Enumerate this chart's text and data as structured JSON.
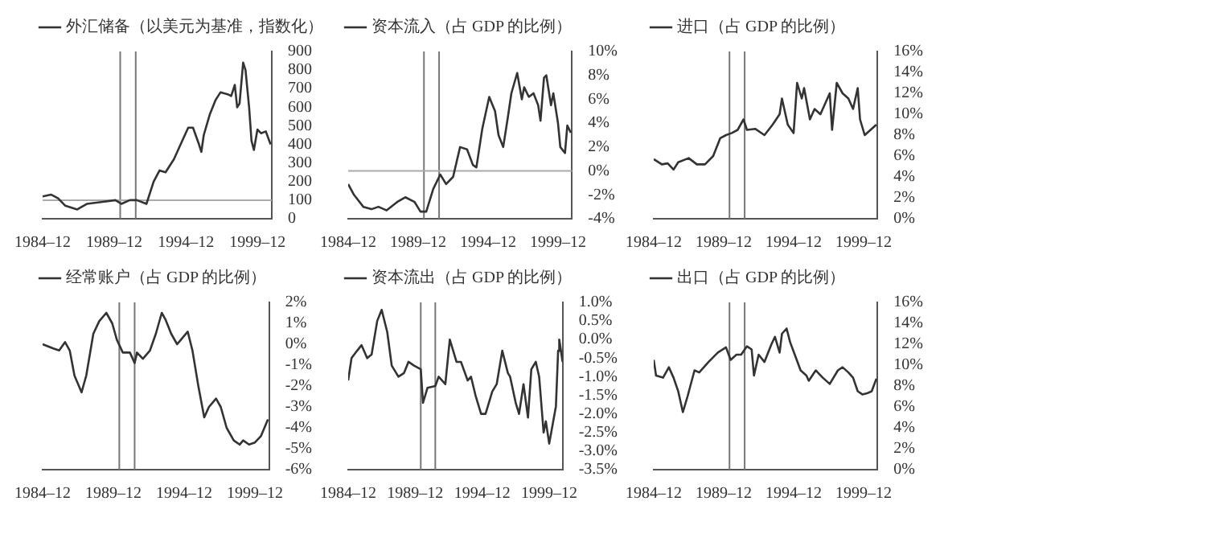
{
  "chart_data": [
    {
      "type": "line",
      "x": [
        "1984-12",
        "1985-07",
        "1986-01",
        "1986-07",
        "1987-05",
        "1988-01",
        "1989-01",
        "1990-01",
        "1990-06",
        "1991-01",
        "1991-07",
        "1992-03",
        "1992-09",
        "1993-02",
        "1993-07",
        "1994-02",
        "1994-09",
        "1995-02",
        "1995-06",
        "1995-11",
        "1996-01",
        "1996-03",
        "1996-08",
        "1997-01",
        "1997-05",
        "1997-11",
        "1998-02",
        "1998-05",
        "1998-07",
        "1998-09",
        "1998-12",
        "1999-02",
        "1999-05",
        "1999-07",
        "1999-09",
        "1999-12",
        "2000-03",
        "2000-07",
        "2000-11"
      ],
      "series": [
        {
          "name": "外汇储备（以美元为基准，指数化）",
          "color": "#333333",
          "values": [
            120,
            130,
            110,
            70,
            50,
            80,
            90,
            100,
            80,
            100,
            100,
            80,
            200,
            260,
            250,
            320,
            420,
            490,
            490,
            400,
            360,
            450,
            560,
            640,
            680,
            670,
            660,
            720,
            600,
            620,
            840,
            800,
            600,
            420,
            370,
            480,
            460,
            470,
            400
          ]
        }
      ],
      "xlim": [
        "1984-12",
        "2000-12"
      ],
      "xticks": [
        {
          "value": "1984-12",
          "label": "1984–12"
        },
        {
          "value": "1989-12",
          "label": "1989–12"
        },
        {
          "value": "1994-12",
          "label": "1994–12"
        },
        {
          "value": "1999-12",
          "label": "1999–12"
        }
      ],
      "ylim": [
        0,
        900
      ],
      "yticks": [
        0,
        100,
        200,
        300,
        400,
        500,
        600,
        700,
        800,
        900
      ],
      "legend": "top",
      "grid": false,
      "marker": "none",
      "ref_lines": [
        {
          "axis": "x",
          "value": "1990-05",
          "color": "#777777"
        },
        {
          "axis": "x",
          "value": "1991-06",
          "color": "#777777"
        },
        {
          "axis": "y",
          "value": 100,
          "color": "#aaaaaa"
        }
      ]
    },
    {
      "type": "line",
      "x": [
        "1984-12",
        "1985-05",
        "1986-01",
        "1986-08",
        "1987-02",
        "1987-09",
        "1988-06",
        "1989-01",
        "1989-09",
        "1990-02",
        "1990-07",
        "1991-01",
        "1991-07",
        "1991-12",
        "1992-06",
        "1992-12",
        "1993-06",
        "1993-11",
        "1994-02",
        "1994-07",
        "1995-01",
        "1995-06",
        "1995-09",
        "1996-01",
        "1996-05",
        "1996-08",
        "1997-01",
        "1997-05",
        "1997-07",
        "1997-11",
        "1998-03",
        "1998-07",
        "1998-09",
        "1998-12",
        "1999-02",
        "1999-06",
        "1999-08",
        "1999-12",
        "2000-02",
        "2000-06",
        "2000-08",
        "2000-11"
      ],
      "series": [
        {
          "name": "资本流入（占 GDP 的比例）",
          "color": "#333333",
          "values": [
            -1.1,
            -2,
            -3,
            -3.2,
            -3,
            -3.3,
            -2.6,
            -2.2,
            -2.6,
            -3.4,
            -3.4,
            -1.5,
            -0.3,
            -1.1,
            -0.5,
            2,
            1.8,
            0.5,
            0.3,
            3.5,
            6.2,
            5,
            3,
            2,
            4.5,
            6.5,
            8.2,
            6,
            7,
            6.2,
            6.5,
            5.5,
            4.2,
            7.8,
            8,
            5.5,
            6.5,
            4,
            2,
            1.5,
            3.8,
            3.2
          ]
        }
      ],
      "xlim": [
        "1984-12",
        "2000-12"
      ],
      "xticks": [
        {
          "value": "1984-12",
          "label": "1984–12"
        },
        {
          "value": "1989-12",
          "label": "1989–12"
        },
        {
          "value": "1994-12",
          "label": "1994–12"
        },
        {
          "value": "1999-12",
          "label": "1999–12"
        }
      ],
      "ylim": [
        -4,
        10
      ],
      "yticks": [
        {
          "value": -4,
          "label": "-4%"
        },
        {
          "value": -2,
          "label": "-2%"
        },
        {
          "value": 0,
          "label": "0%"
        },
        {
          "value": 2,
          "label": "2%"
        },
        {
          "value": 4,
          "label": "4%"
        },
        {
          "value": 6,
          "label": "6%"
        },
        {
          "value": 8,
          "label": "8%"
        },
        {
          "value": 10,
          "label": "10%"
        }
      ],
      "legend": "top",
      "grid": false,
      "marker": "none",
      "ref_lines": [
        {
          "axis": "x",
          "value": "1990-05",
          "color": "#777777"
        },
        {
          "axis": "x",
          "value": "1991-06",
          "color": "#777777"
        },
        {
          "axis": "y",
          "value": 0,
          "color": "#aaaaaa"
        }
      ]
    },
    {
      "type": "line",
      "x": [
        "1984-12",
        "1985-07",
        "1985-12",
        "1986-05",
        "1986-09",
        "1987-06",
        "1988-01",
        "1988-08",
        "1989-03",
        "1989-09",
        "1990-02",
        "1990-07",
        "1990-12",
        "1991-05",
        "1991-08",
        "1992-03",
        "1992-11",
        "1993-06",
        "1993-12",
        "1994-02",
        "1994-07",
        "1994-12",
        "1995-03",
        "1995-07",
        "1995-09",
        "1996-02",
        "1996-06",
        "1996-11",
        "1997-03",
        "1997-07",
        "1997-09",
        "1998-01",
        "1998-06",
        "1998-11",
        "1999-03",
        "1999-07",
        "1999-09",
        "2000-01",
        "2000-06",
        "2000-11"
      ],
      "series": [
        {
          "name": "进口（占 GDP 的比例）",
          "color": "#333333",
          "values": [
            5.7,
            5.2,
            5.3,
            4.7,
            5.4,
            5.8,
            5.2,
            5.2,
            6,
            7.7,
            8,
            8.2,
            8.5,
            9.5,
            8.5,
            8.6,
            8,
            9,
            10,
            11.5,
            9,
            8.2,
            13,
            11.5,
            12.5,
            9.5,
            10.5,
            10,
            11,
            12,
            8.5,
            13,
            12,
            11.5,
            10.5,
            12.5,
            9.5,
            8,
            8.5,
            9
          ]
        }
      ],
      "xlim": [
        "1984-12",
        "2000-12"
      ],
      "xticks": [
        {
          "value": "1984-12",
          "label": "1984–12"
        },
        {
          "value": "1989-12",
          "label": "1989–12"
        },
        {
          "value": "1994-12",
          "label": "1994–12"
        },
        {
          "value": "1999-12",
          "label": "1999–12"
        }
      ],
      "ylim": [
        0,
        16
      ],
      "yticks": [
        {
          "value": 0,
          "label": "0%"
        },
        {
          "value": 2,
          "label": "2%"
        },
        {
          "value": 4,
          "label": "4%"
        },
        {
          "value": 6,
          "label": "6%"
        },
        {
          "value": 8,
          "label": "8%"
        },
        {
          "value": 10,
          "label": "10%"
        },
        {
          "value": 12,
          "label": "12%"
        },
        {
          "value": 14,
          "label": "14%"
        },
        {
          "value": 16,
          "label": "16%"
        }
      ],
      "legend": "top",
      "grid": false,
      "marker": "none",
      "ref_lines": [
        {
          "axis": "x",
          "value": "1990-05",
          "color": "#777777"
        },
        {
          "axis": "x",
          "value": "1991-06",
          "color": "#777777"
        }
      ]
    },
    {
      "type": "line",
      "x": [
        "1984-12",
        "1985-09",
        "1986-02",
        "1986-07",
        "1986-11",
        "1987-03",
        "1987-09",
        "1988-01",
        "1988-07",
        "1988-12",
        "1989-06",
        "1989-11",
        "1990-03",
        "1990-08",
        "1991-02",
        "1991-06",
        "1991-08",
        "1992-01",
        "1992-07",
        "1992-12",
        "1993-05",
        "1993-08",
        "1994-01",
        "1994-06",
        "1994-09",
        "1995-03",
        "1995-07",
        "1995-12",
        "1996-05",
        "1996-09",
        "1997-03",
        "1997-07",
        "1997-12",
        "1998-06",
        "1998-11",
        "1999-02",
        "1999-07",
        "1999-12",
        "2000-05",
        "2000-11"
      ],
      "series": [
        {
          "name": "经常账户（占 GDP 的比例）",
          "color": "#333333",
          "values": [
            0,
            -0.2,
            -0.3,
            0.1,
            -0.3,
            -1.5,
            -2.3,
            -1.5,
            0.5,
            1.1,
            1.5,
            1,
            0.2,
            -0.4,
            -0.4,
            -0.9,
            -0.4,
            -0.7,
            -0.3,
            0.5,
            1.5,
            1.2,
            0.5,
            0,
            0.2,
            0.6,
            -0.3,
            -2,
            -3.5,
            -3,
            -2.6,
            -3,
            -4,
            -4.6,
            -4.8,
            -4.6,
            -4.8,
            -4.7,
            -4.4,
            -3.6
          ]
        }
      ],
      "xlim": [
        "1984-12",
        "2000-12"
      ],
      "xticks": [
        {
          "value": "1984-12",
          "label": "1984–12"
        },
        {
          "value": "1989-12",
          "label": "1989–12"
        },
        {
          "value": "1994-12",
          "label": "1994–12"
        },
        {
          "value": "1999-12",
          "label": "1999–12"
        }
      ],
      "ylim": [
        -6,
        2
      ],
      "yticks": [
        {
          "value": -6,
          "label": "-6%"
        },
        {
          "value": -5,
          "label": "-5%"
        },
        {
          "value": -4,
          "label": "-4%"
        },
        {
          "value": -3,
          "label": "-3%"
        },
        {
          "value": -2,
          "label": "-2%"
        },
        {
          "value": -1,
          "label": "-1%"
        },
        {
          "value": 0,
          "label": "0%"
        },
        {
          "value": 1,
          "label": "1%"
        },
        {
          "value": 2,
          "label": "2%"
        }
      ],
      "legend": "top",
      "grid": false,
      "marker": "none",
      "ref_lines": [
        {
          "axis": "x",
          "value": "1990-05",
          "color": "#777777"
        },
        {
          "axis": "x",
          "value": "1991-06",
          "color": "#777777"
        }
      ]
    },
    {
      "type": "line",
      "x": [
        "1984-12",
        "1985-03",
        "1985-08",
        "1985-12",
        "1986-05",
        "1986-09",
        "1987-02",
        "1987-06",
        "1987-11",
        "1988-03",
        "1988-09",
        "1989-02",
        "1989-06",
        "1989-11",
        "1990-05",
        "1990-07",
        "1990-11",
        "1991-06",
        "1991-09",
        "1992-03",
        "1992-07",
        "1993-01",
        "1993-05",
        "1993-11",
        "1994-02",
        "1994-06",
        "1994-11",
        "1995-03",
        "1995-09",
        "1996-01",
        "1996-06",
        "1996-11",
        "1997-01",
        "1997-06",
        "1997-09",
        "1998-01",
        "1998-05",
        "1998-08",
        "1998-12",
        "1999-03",
        "1999-07",
        "1999-09",
        "1999-12",
        "2000-03",
        "2000-06",
        "2000-08",
        "2000-09",
        "2000-12"
      ],
      "series": [
        {
          "name": "资本流出（占 GDP 的比例）",
          "color": "#333333",
          "values": [
            -1.1,
            -0.5,
            -0.3,
            -0.15,
            -0.5,
            -0.4,
            0.5,
            0.8,
            0.2,
            -0.7,
            -1,
            -0.9,
            -0.6,
            -0.7,
            -0.8,
            -1.7,
            -1.3,
            -1.25,
            -1,
            -1.2,
            0,
            -0.6,
            -0.6,
            -1.1,
            -1,
            -1.5,
            -2,
            -2,
            -1.4,
            -1.2,
            -0.3,
            -0.9,
            -1,
            -1.7,
            -2,
            -1.2,
            -2.1,
            -0.8,
            -0.6,
            -1,
            -2.5,
            -2.2,
            -2.8,
            -2.3,
            -1.8,
            -0.3,
            0,
            -0.6
          ]
        }
      ],
      "xlim": [
        "1984-12",
        "2000-12"
      ],
      "xticks": [
        {
          "value": "1984-12",
          "label": "1984–12"
        },
        {
          "value": "1989-12",
          "label": "1989–12"
        },
        {
          "value": "1994-12",
          "label": "1994–12"
        },
        {
          "value": "1999-12",
          "label": "1999–12"
        }
      ],
      "ylim": [
        -3.5,
        1
      ],
      "yticks": [
        {
          "value": -3.5,
          "label": "-3.5%"
        },
        {
          "value": -3,
          "label": "-3.0%"
        },
        {
          "value": -2.5,
          "label": "-2.5%"
        },
        {
          "value": -2,
          "label": "-2.0%"
        },
        {
          "value": -1.5,
          "label": "-1.5%"
        },
        {
          "value": -1,
          "label": "-1.0%"
        },
        {
          "value": -0.5,
          "label": "-0.5%"
        },
        {
          "value": 0,
          "label": "0.0%"
        },
        {
          "value": 0.5,
          "label": "0.5%"
        },
        {
          "value": 1,
          "label": "1.0%"
        }
      ],
      "legend": "top",
      "grid": false,
      "marker": "none",
      "ref_lines": [
        {
          "axis": "x",
          "value": "1990-05",
          "color": "#777777"
        },
        {
          "axis": "x",
          "value": "1991-06",
          "color": "#777777"
        }
      ]
    },
    {
      "type": "line",
      "x": [
        "1984-12",
        "1985-02",
        "1985-08",
        "1986-01",
        "1986-05",
        "1986-09",
        "1987-01",
        "1987-05",
        "1987-11",
        "1988-03",
        "1988-11",
        "1989-07",
        "1990-02",
        "1990-06",
        "1990-11",
        "1991-03",
        "1991-08",
        "1991-12",
        "1992-02",
        "1992-06",
        "1992-11",
        "1993-05",
        "1993-08",
        "1993-12",
        "1994-02",
        "1994-06",
        "1994-09",
        "1995-01",
        "1995-06",
        "1995-11",
        "1996-01",
        "1996-07",
        "1997-01",
        "1997-07",
        "1998-02",
        "1998-06",
        "1998-11",
        "1999-03",
        "1999-07",
        "1999-11",
        "2000-03",
        "2000-07",
        "2000-11"
      ],
      "series": [
        {
          "name": "出口（占 GDP 的比例）",
          "color": "#333333",
          "values": [
            10.5,
            9,
            8.8,
            9.8,
            8.8,
            7.5,
            5.5,
            7,
            9.5,
            9.3,
            10.3,
            11.2,
            11.7,
            10.5,
            11,
            11,
            11.8,
            11.5,
            9,
            11,
            10.3,
            12,
            12.7,
            11.2,
            13,
            13.5,
            12.2,
            11,
            9.5,
            9,
            8.5,
            9.5,
            8.8,
            8.2,
            9.5,
            9.8,
            9.3,
            8.8,
            7.5,
            7.2,
            7.3,
            7.5,
            8.7
          ]
        }
      ],
      "xlim": [
        "1984-12",
        "2000-12"
      ],
      "xticks": [
        {
          "value": "1984-12",
          "label": "1984–12"
        },
        {
          "value": "1989-12",
          "label": "1989–12"
        },
        {
          "value": "1994-12",
          "label": "1994–12"
        },
        {
          "value": "1999-12",
          "label": "1999–12"
        }
      ],
      "ylim": [
        0,
        16
      ],
      "yticks": [
        {
          "value": 0,
          "label": "0%"
        },
        {
          "value": 2,
          "label": "2%"
        },
        {
          "value": 4,
          "label": "4%"
        },
        {
          "value": 6,
          "label": "6%"
        },
        {
          "value": 8,
          "label": "8%"
        },
        {
          "value": 10,
          "label": "10%"
        },
        {
          "value": 12,
          "label": "12%"
        },
        {
          "value": 14,
          "label": "14%"
        },
        {
          "value": 16,
          "label": "16%"
        }
      ],
      "legend": "top",
      "grid": false,
      "marker": "none",
      "ref_lines": [
        {
          "axis": "x",
          "value": "1990-05",
          "color": "#777777"
        },
        {
          "axis": "x",
          "value": "1991-06",
          "color": "#777777"
        }
      ]
    }
  ]
}
